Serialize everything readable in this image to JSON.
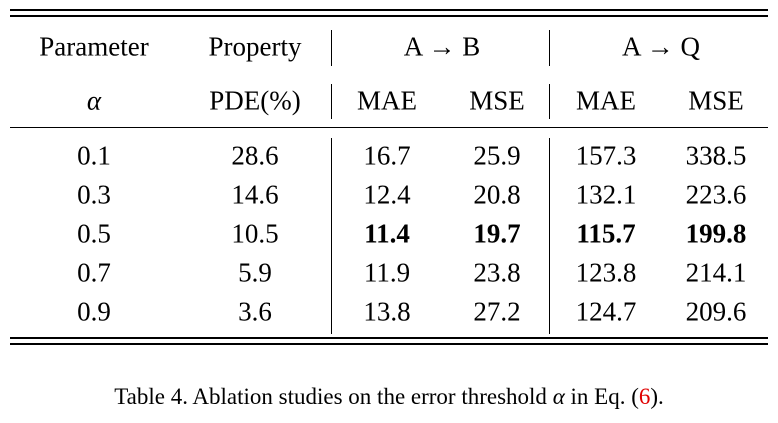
{
  "table": {
    "header_top": [
      "Parameter",
      "Property",
      "A → B",
      "A → Q"
    ],
    "header_sub": [
      "α",
      "PDE(%)",
      "MAE",
      "MSE",
      "MAE",
      "MSE"
    ],
    "rows": [
      [
        0.1,
        28.6,
        16.7,
        25.9,
        157.3,
        338.5
      ],
      [
        0.3,
        14.6,
        12.4,
        20.8,
        132.1,
        223.6
      ],
      [
        0.5,
        10.5,
        11.4,
        19.7,
        115.7,
        199.8
      ],
      [
        0.7,
        5.9,
        11.9,
        23.8,
        123.8,
        214.1
      ],
      [
        0.9,
        3.6,
        13.8,
        27.2,
        124.7,
        209.6
      ]
    ]
  },
  "caption": {
    "text": "Table 4. Ablation studies on the error threshold ",
    "symbol": "α",
    "text_after": " in Eq. (",
    "ref": "6",
    "end": ")."
  }
}
